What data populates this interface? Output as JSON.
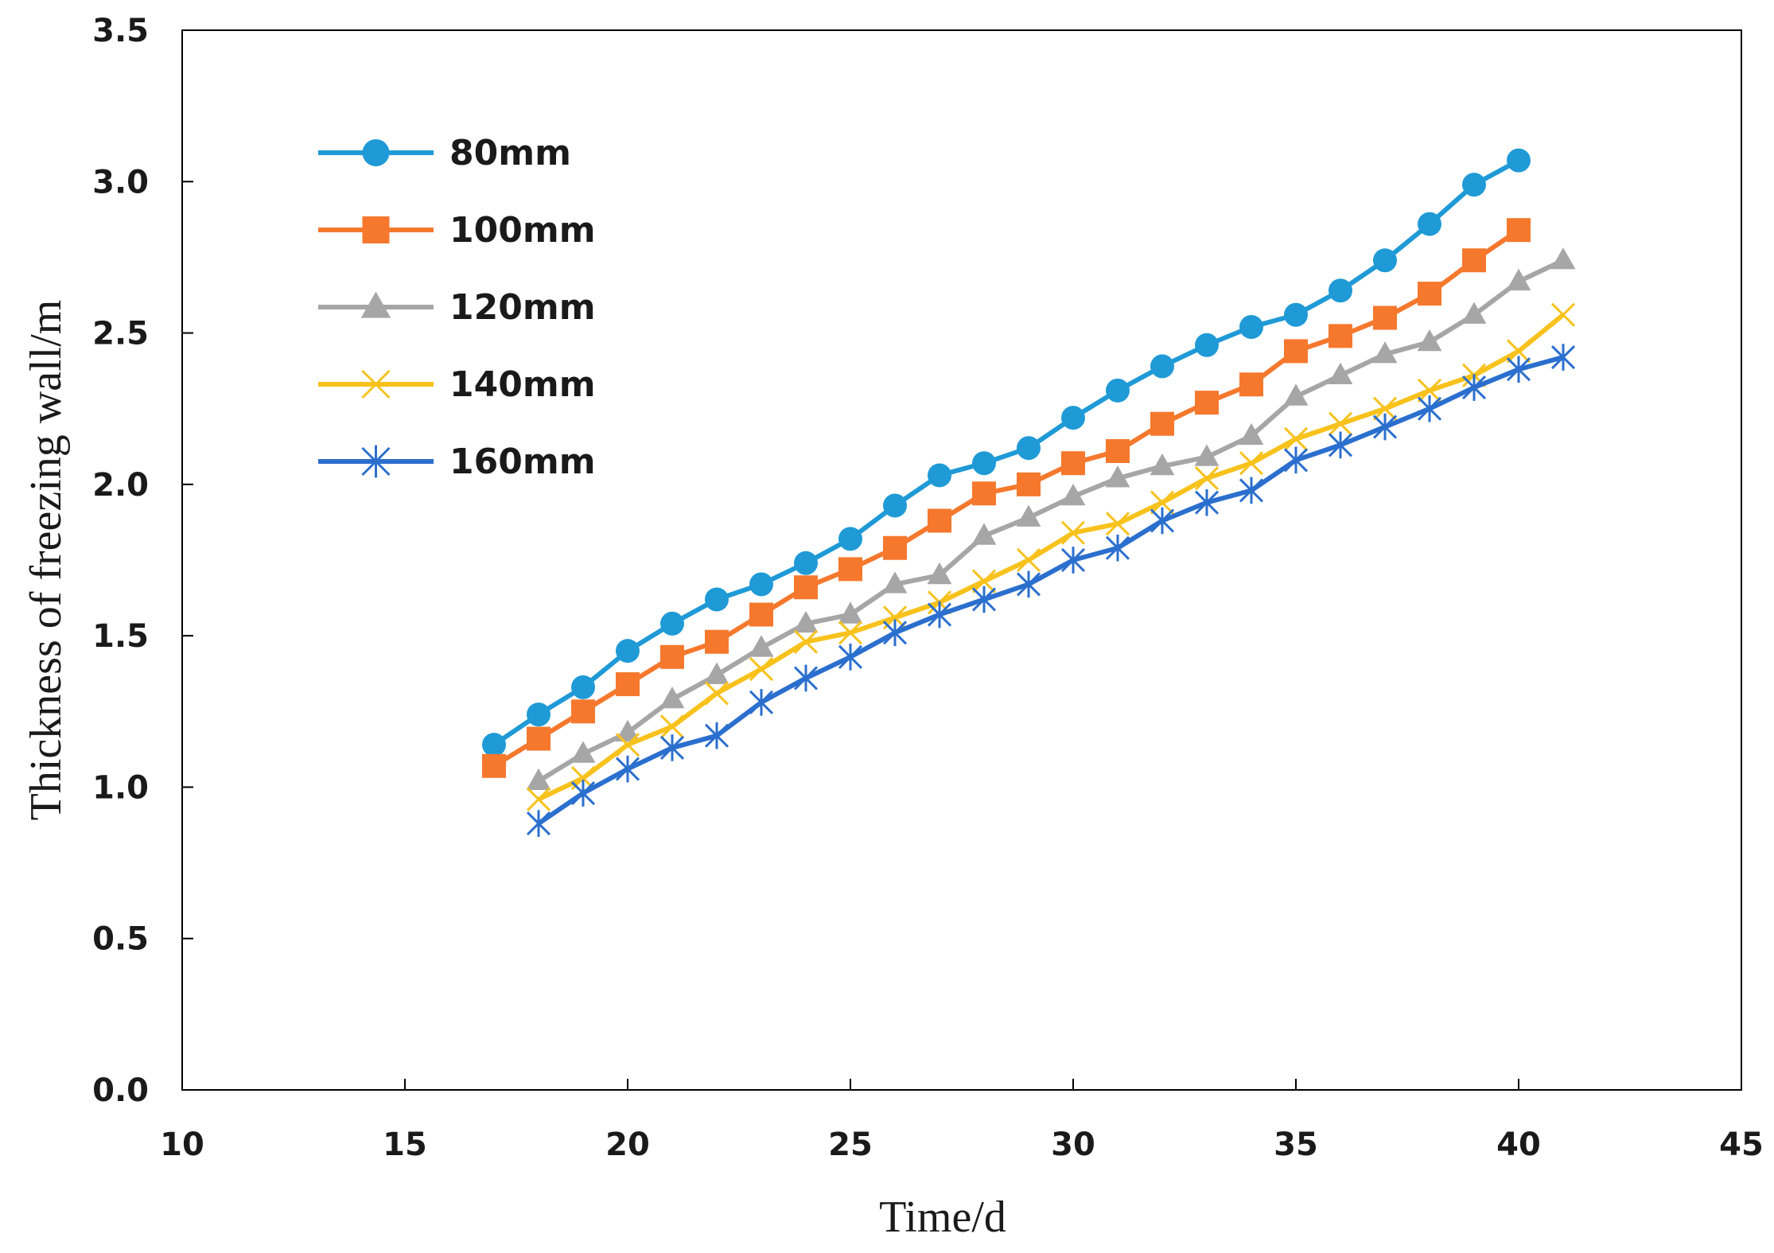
{
  "chart_data": {
    "type": "line",
    "title": "",
    "xlabel": "Time/d",
    "ylabel": "Thickness of freezing wall/m",
    "xlim": [
      10,
      45
    ],
    "ylim": [
      0.0,
      3.5
    ],
    "x_ticks": [
      "10",
      "15",
      "20",
      "25",
      "30",
      "35",
      "40",
      "45"
    ],
    "y_ticks": [
      "0.0",
      "0.5",
      "1.0",
      "1.5",
      "2.0",
      "2.5",
      "3.0",
      "3.5"
    ],
    "grid": false,
    "legend_position": "top-left",
    "series": [
      {
        "name": "80mm",
        "color": "#1f9ad6",
        "marker": "circle",
        "x": [
          17,
          18,
          19,
          20,
          21,
          22,
          23,
          24,
          25,
          26,
          27,
          28,
          29,
          30,
          31,
          32,
          33,
          34,
          35,
          36,
          37,
          38,
          39,
          40
        ],
        "values": [
          1.14,
          1.24,
          1.33,
          1.45,
          1.54,
          1.62,
          1.67,
          1.74,
          1.82,
          1.93,
          2.03,
          2.07,
          2.12,
          2.22,
          2.31,
          2.39,
          2.46,
          2.52,
          2.56,
          2.64,
          2.74,
          2.86,
          2.99,
          3.07
        ]
      },
      {
        "name": "100mm",
        "color": "#f5782d",
        "marker": "square",
        "x": [
          17,
          18,
          19,
          20,
          21,
          22,
          23,
          24,
          25,
          26,
          27,
          28,
          29,
          30,
          31,
          32,
          33,
          34,
          35,
          36,
          37,
          38,
          39,
          40
        ],
        "values": [
          1.07,
          1.16,
          1.25,
          1.34,
          1.43,
          1.48,
          1.57,
          1.66,
          1.72,
          1.79,
          1.88,
          1.97,
          2.0,
          2.07,
          2.11,
          2.2,
          2.27,
          2.33,
          2.44,
          2.49,
          2.55,
          2.63,
          2.74,
          2.84
        ]
      },
      {
        "name": "120mm",
        "color": "#a6a6a6",
        "marker": "triangle",
        "x": [
          18,
          19,
          20,
          21,
          22,
          23,
          24,
          25,
          26,
          27,
          28,
          29,
          30,
          31,
          32,
          33,
          34,
          35,
          36,
          37,
          38,
          39,
          40,
          41
        ],
        "values": [
          1.02,
          1.11,
          1.18,
          1.29,
          1.37,
          1.46,
          1.54,
          1.57,
          1.67,
          1.7,
          1.83,
          1.89,
          1.96,
          2.02,
          2.06,
          2.09,
          2.16,
          2.29,
          2.36,
          2.43,
          2.47,
          2.56,
          2.67,
          2.74
        ]
      },
      {
        "name": "140mm",
        "color": "#f8c21c",
        "marker": "x",
        "x": [
          18,
          19,
          20,
          21,
          22,
          23,
          24,
          25,
          26,
          27,
          28,
          29,
          30,
          31,
          32,
          33,
          34,
          35,
          36,
          37,
          38,
          39,
          40,
          41
        ],
        "values": [
          0.96,
          1.03,
          1.14,
          1.2,
          1.31,
          1.39,
          1.48,
          1.51,
          1.56,
          1.61,
          1.68,
          1.75,
          1.84,
          1.87,
          1.94,
          2.02,
          2.07,
          2.15,
          2.2,
          2.25,
          2.31,
          2.36,
          2.44,
          2.56
        ]
      },
      {
        "name": "160mm",
        "color": "#2b6fce",
        "marker": "asterisk",
        "x": [
          18,
          19,
          20,
          21,
          22,
          23,
          24,
          25,
          26,
          27,
          28,
          29,
          30,
          31,
          32,
          33,
          34,
          35,
          36,
          37,
          38,
          39,
          40,
          41
        ],
        "values": [
          0.88,
          0.98,
          1.06,
          1.13,
          1.17,
          1.28,
          1.36,
          1.43,
          1.51,
          1.57,
          1.62,
          1.67,
          1.75,
          1.79,
          1.88,
          1.94,
          1.98,
          2.08,
          2.13,
          2.19,
          2.25,
          2.32,
          2.38,
          2.42
        ]
      }
    ]
  }
}
